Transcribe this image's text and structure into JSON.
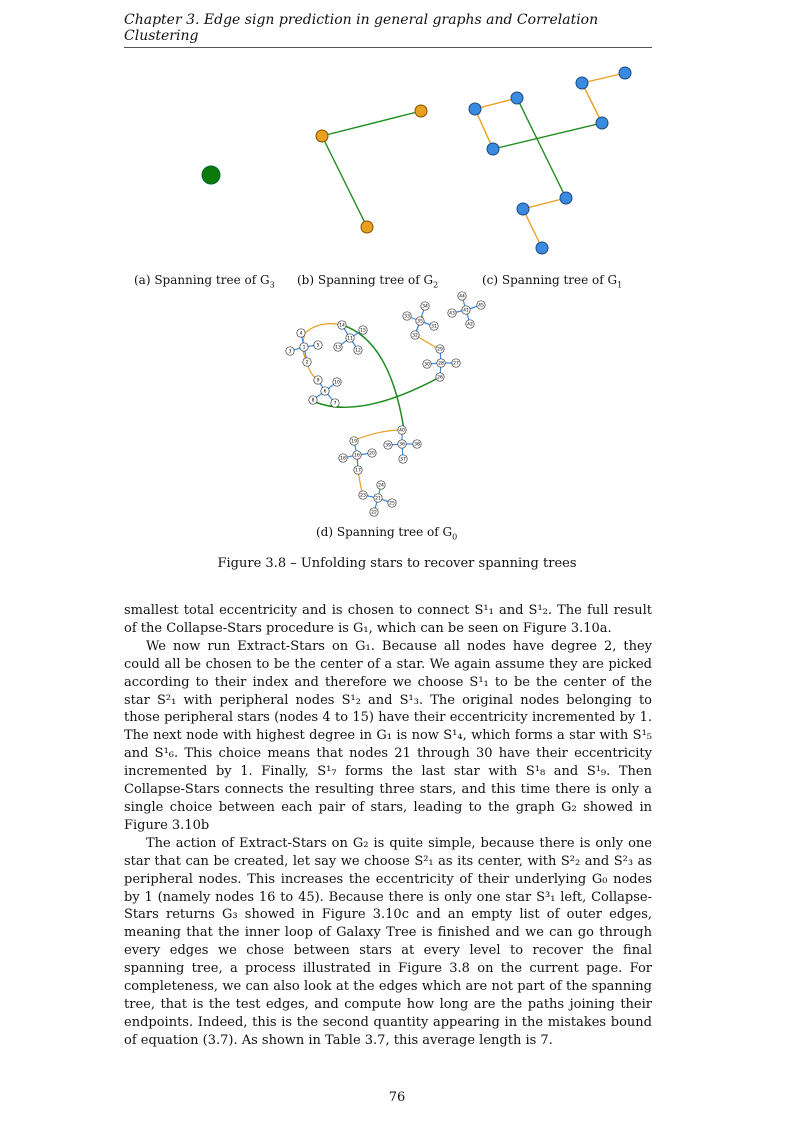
{
  "header": {
    "chapter": "Chapter 3.  Edge sign prediction in general graphs and Correlation Clustering"
  },
  "figure": {
    "sub_a": "(a) Spanning tree of G",
    "sub_a_idx": "3",
    "sub_b": "(b) Spanning tree of G",
    "sub_b_idx": "2",
    "sub_c": "(c) Spanning tree of G",
    "sub_c_idx": "1",
    "sub_d": "(d) Spanning tree of G",
    "sub_d_idx": "0",
    "caption": "Figure 3.8 – Unfolding stars to recover spanning trees",
    "node_labels_d": [
      "4",
      "3",
      "1",
      "2",
      "5",
      "9",
      "10",
      "6",
      "8",
      "7",
      "14",
      "11",
      "13",
      "15",
      "12",
      "44",
      "43",
      "41",
      "42",
      "45",
      "33",
      "34",
      "35",
      "31",
      "32",
      "29",
      "30",
      "28",
      "27",
      "26",
      "19",
      "18",
      "16",
      "17",
      "20",
      "24",
      "23",
      "21",
      "22",
      "25",
      "40",
      "39",
      "36",
      "37",
      "38"
    ],
    "colors": {
      "orange": "#e8a020",
      "blue": "#3a8ae0",
      "green": "#1e8c1e",
      "dark_green": "#0b7a0b"
    }
  },
  "body": {
    "p1": "smallest total eccentricity and is chosen to connect S¹₁ and S¹₂. The full result of the Collapse-Stars procedure is G₁, which can be seen on Figure 3.10a.",
    "p2": "We now run Extract-Stars on G₁. Because all nodes have degree 2, they could all be chosen to be the center of a star. We again assume they are picked according to their index and therefore we choose S¹₁ to be the center of the star S²₁ with peripheral nodes S¹₂ and S¹₃. The original nodes belonging to those peripheral stars (nodes 4 to 15) have their eccentricity incremented by 1. The next node with highest degree in G₁ is now S¹₄, which forms a star with S¹₅ and S¹₆. This choice means that nodes 21 through 30 have their eccentricity incremented by 1. Finally, S¹₇ forms the last star with S¹₈ and S¹₉. Then Collapse-Stars connects the resulting three stars, and this time there is only a single choice between each pair of stars, leading to the graph G₂ showed in Figure 3.10b",
    "p3": "The action of Extract-Stars on G₂ is quite simple, because there is only one star that can be created, let say we choose S²₁ as its center, with S²₂ and S²₃ as peripheral nodes. This increases the eccentricity of their underlying G₀ nodes by 1 (namely nodes 16 to 45). Because there is only one star S³₁ left, Collapse-Stars returns G₃ showed in Figure 3.10c and an empty list of outer edges, meaning that the inner loop of Galaxy Tree is finished and we can go through every edges we chose between stars at every level to recover the final spanning tree, a process illustrated in Figure 3.8 on the current page. For completeness, we can also look at the edges which are not part of the spanning tree, that is the test edges, and compute how long are the paths joining their endpoints. Indeed, this is the second quantity appearing in the mistakes bound of equation (3.7). As shown in Table 3.7, this average length is 7."
  },
  "page_number": "76"
}
